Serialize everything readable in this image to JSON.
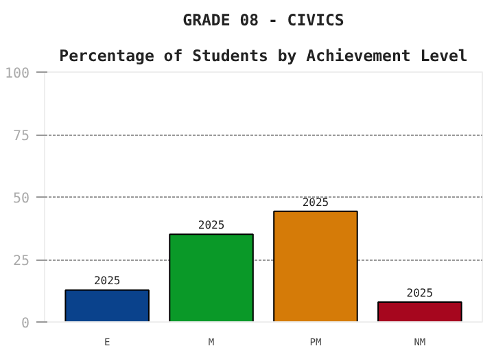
{
  "chart_data": {
    "type": "bar",
    "title": "GRADE 08 - CIVICS",
    "subtitle": "Percentage of Students by Achievement Level",
    "categories": [
      "E",
      "M",
      "PM",
      "NM"
    ],
    "series": [
      {
        "name": "2025",
        "values": [
          12.8,
          35.1,
          44.3,
          8.0
        ]
      }
    ],
    "colors": [
      "#0a428c",
      "#0a9928",
      "#d57b08",
      "#a6061e"
    ],
    "ylim": [
      0,
      100
    ],
    "yticks": [
      0,
      25,
      50,
      75,
      100
    ],
    "grid": "y"
  }
}
